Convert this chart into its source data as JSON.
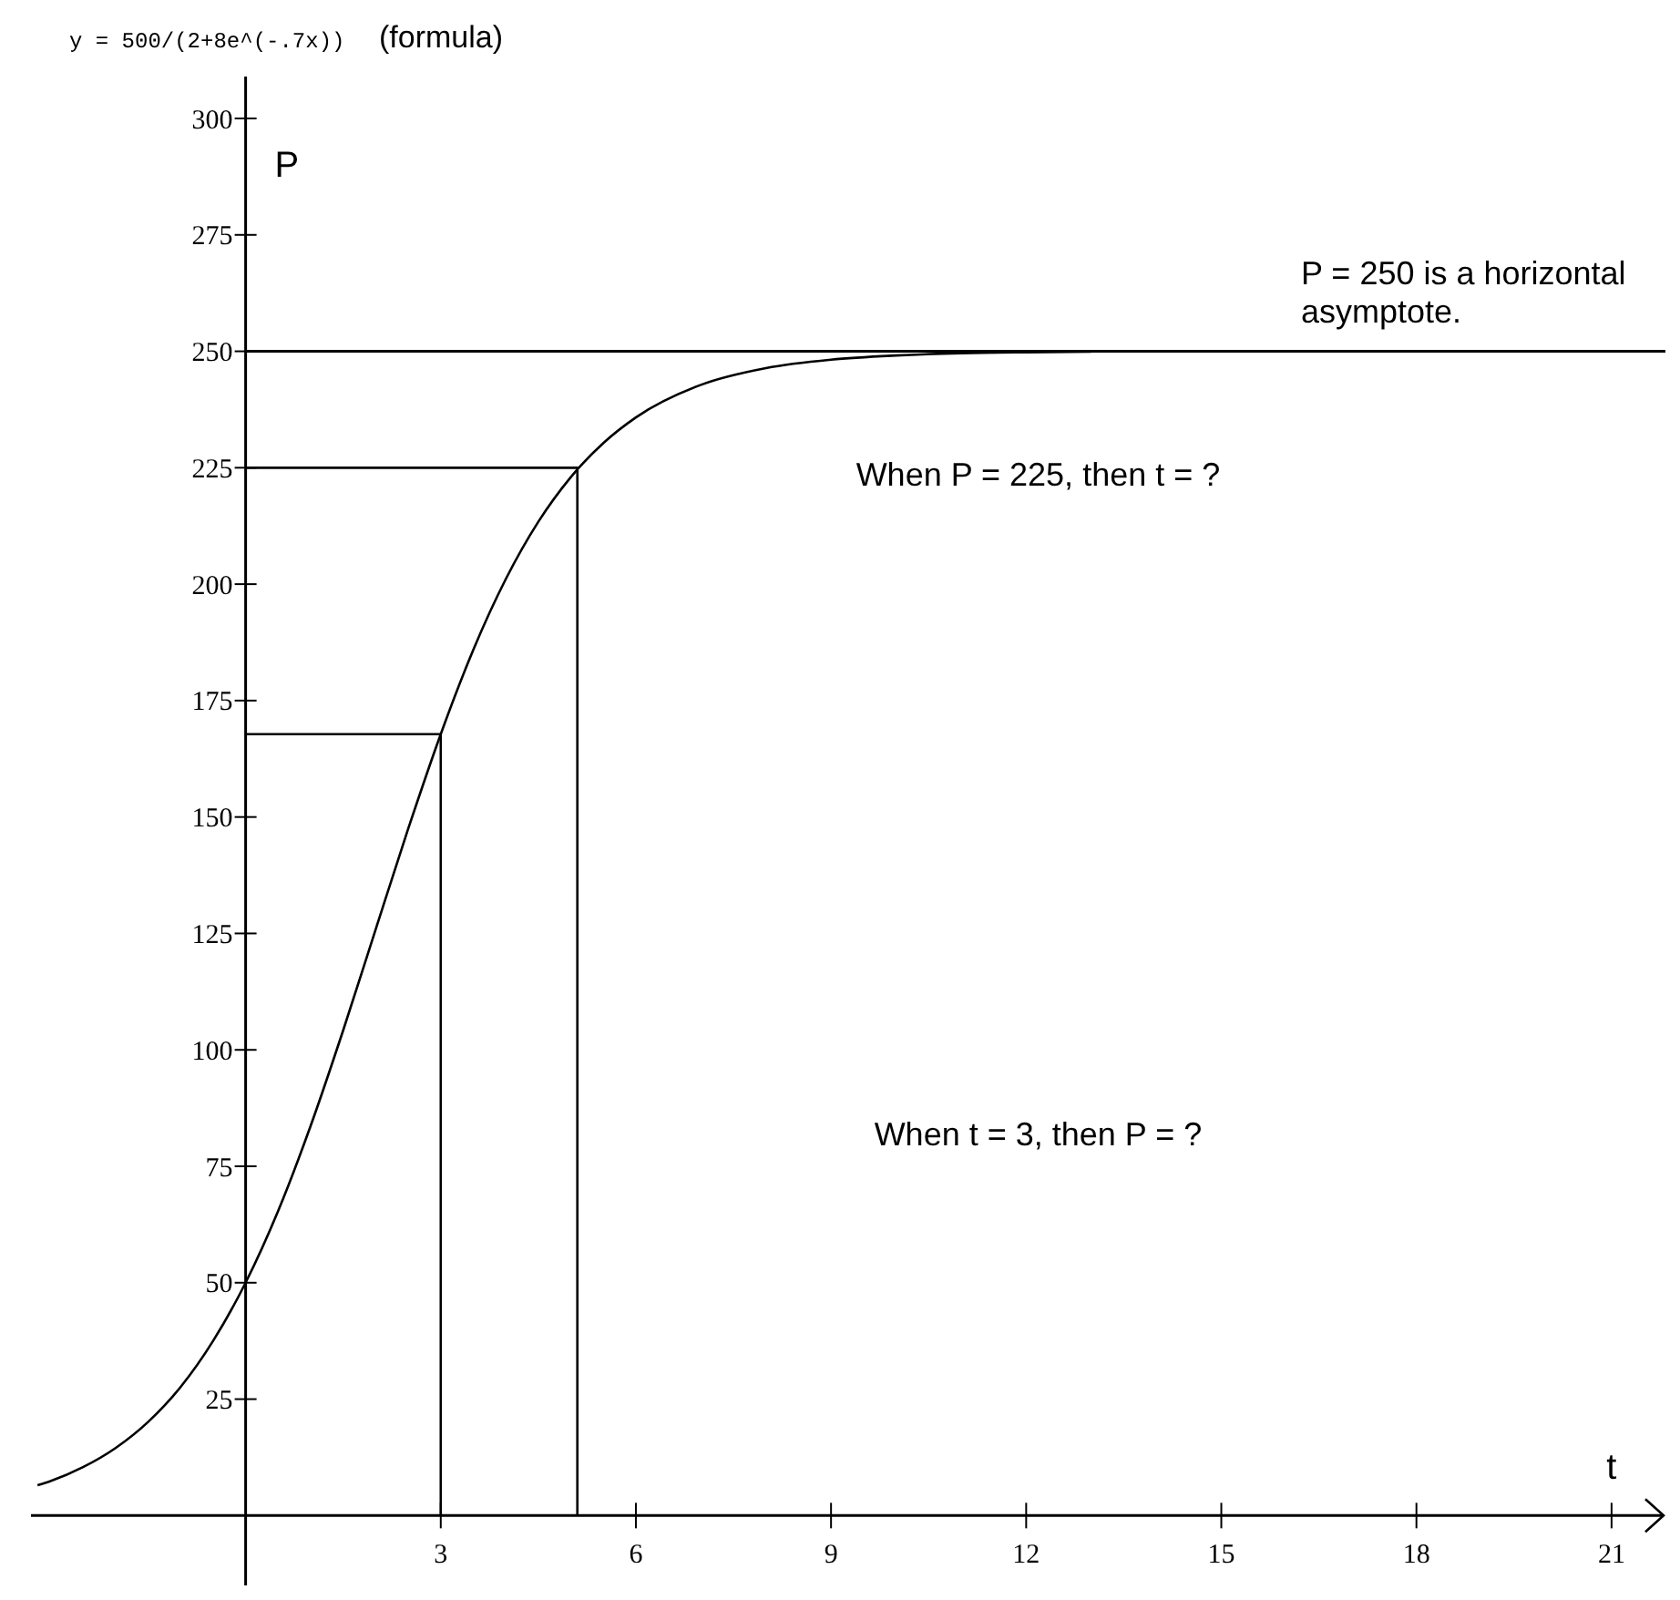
{
  "chart_data": {
    "type": "line",
    "title": "y = 500/(2+8e^(-.7x))",
    "subtitle": "(formula)",
    "xlabel": "t",
    "ylabel": "P",
    "xlim": [
      -3.3,
      21.8
    ],
    "ylim": [
      -15,
      309
    ],
    "xticks": [
      3,
      6,
      9,
      12,
      15,
      18,
      21
    ],
    "yticks": [
      25,
      50,
      75,
      100,
      125,
      150,
      175,
      200,
      225,
      250,
      275,
      300
    ],
    "series": [
      {
        "color": "#000000",
        "x": [
          -3.2,
          -3,
          -2.5,
          -2,
          -1.5,
          -1,
          -0.5,
          0,
          0.5,
          1,
          1.5,
          2,
          2.5,
          3,
          3.5,
          4,
          4.5,
          5,
          5.5,
          6,
          7,
          8,
          9,
          10,
          11,
          12,
          13
        ],
        "values": [
          6.5,
          7.4,
          10.4,
          14.5,
          20.1,
          27.6,
          37.5,
          50,
          65.4,
          83.7,
          104.2,
          125.9,
          147.5,
          167.8,
          185.9,
          201.1,
          213.4,
          223,
          230.3,
          235.8,
          242.8,
          246.4,
          248.2,
          249.1,
          249.6,
          249.8,
          249.9
        ]
      },
      {
        "color": "#000000",
        "x": [
          0,
          3,
          3
        ],
        "values": [
          167.8,
          167.8,
          0
        ]
      },
      {
        "color": "#000000",
        "x": [
          0,
          5.1,
          5.1
        ],
        "values": [
          225,
          225,
          0
        ]
      }
    ],
    "ref_lines": [
      {
        "axis": "y",
        "value": 250,
        "label": "P = 250 is a horizontal asymptote.",
        "color": "#000000"
      }
    ],
    "annotations": [
      "When P = 225, then t = ?",
      "When t = 3, then P = ?"
    ]
  }
}
